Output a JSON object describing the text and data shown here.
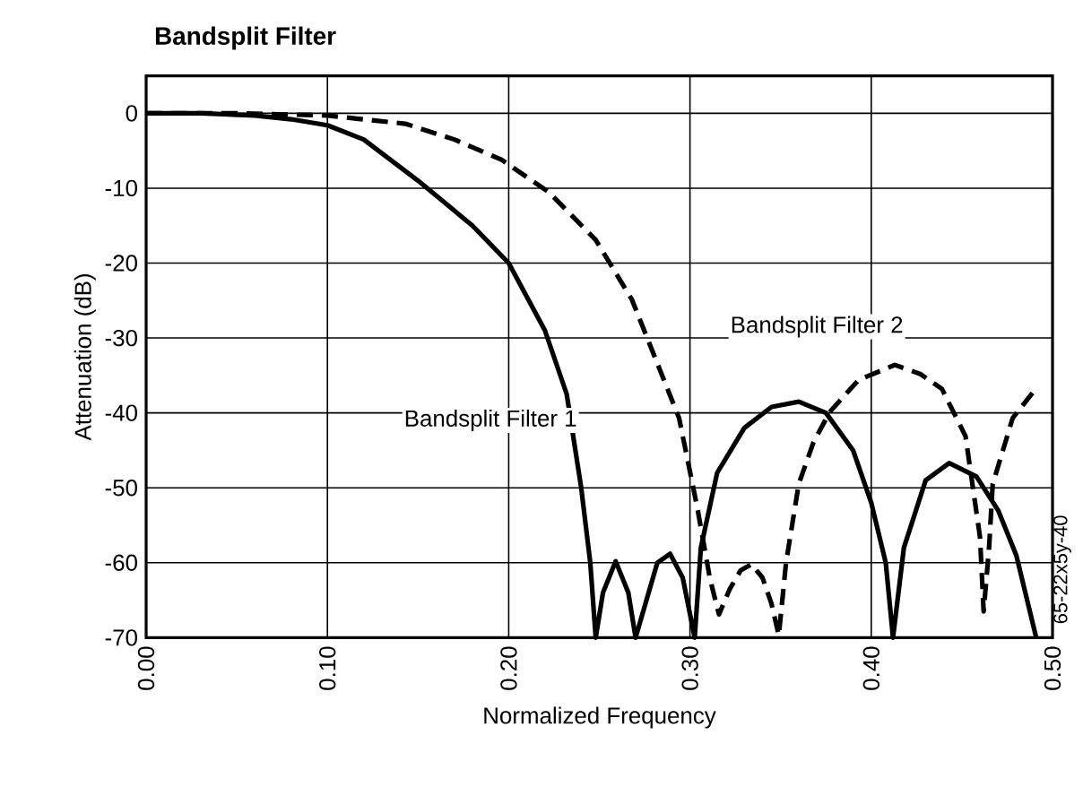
{
  "chart_data": {
    "type": "line",
    "title": "Bandsplit Filter",
    "xlabel": "Normalized Frequency",
    "ylabel": "Attenuation (dB)",
    "annotations": [
      "65-22x5y-40"
    ],
    "xlim": [
      0,
      0.5
    ],
    "ylim": [
      -70,
      5
    ],
    "xticks": [
      {
        "value": 0,
        "label": "0.00"
      },
      {
        "value": 0.1,
        "label": "0.10"
      },
      {
        "value": 0.2,
        "label": "0.20"
      },
      {
        "value": 0.3,
        "label": "0.30"
      },
      {
        "value": 0.4,
        "label": "0.40"
      },
      {
        "value": 0.5,
        "label": "0.50"
      }
    ],
    "yticks": [
      -70,
      -60,
      -50,
      -40,
      -30,
      -20,
      -10,
      0
    ],
    "grid": true,
    "legend": false,
    "marker": "none",
    "series": [
      {
        "name": "Bandsplit Filter 1",
        "color": "#000000",
        "line_style": "solid",
        "x": [
          0,
          0.03,
          0.06,
          0.08,
          0.1,
          0.12,
          0.15,
          0.18,
          0.2,
          0.22,
          0.232,
          0.24,
          0.245,
          0.248,
          0.252,
          0.259,
          0.266,
          0.27,
          0.276,
          0.282,
          0.289,
          0.296,
          0.3026,
          0.306,
          0.315,
          0.33,
          0.345,
          0.36,
          0.375,
          0.39,
          0.4,
          0.408,
          0.412,
          0.418,
          0.43,
          0.443,
          0.458,
          0.47,
          0.48,
          0.491
        ],
        "values": [
          0,
          0,
          -0.3,
          -0.8,
          -1.6,
          -3.5,
          -9,
          -15,
          -20,
          -29,
          -37.5,
          -50,
          -60,
          -70,
          -64,
          -59.8,
          -64,
          -70,
          -65,
          -60,
          -58.8,
          -62,
          -70,
          -58,
          -48,
          -42,
          -39.2,
          -38.5,
          -40,
          -45,
          -52,
          -60,
          -70,
          -58,
          -49,
          -46.7,
          -48.5,
          -53,
          -59,
          -70
        ]
      },
      {
        "name": "Bandsplit Filter 2",
        "color": "#000000",
        "line_style": "dashed",
        "x": [
          0,
          0.05,
          0.1,
          0.143,
          0.17,
          0.196,
          0.222,
          0.248,
          0.268,
          0.281,
          0.294,
          0.304,
          0.311,
          0.316,
          0.322,
          0.328,
          0.334,
          0.34,
          0.345,
          0.349,
          0.353,
          0.36,
          0.368,
          0.377,
          0.393,
          0.413,
          0.427,
          0.439,
          0.452,
          0.46,
          0.462,
          0.465,
          0.467,
          0.478,
          0.492
        ],
        "values": [
          0,
          0,
          -0.3,
          -1.4,
          -3.5,
          -6.2,
          -10.5,
          -16.9,
          -24.9,
          -32.8,
          -40.7,
          -52.6,
          -62.1,
          -66.9,
          -63.5,
          -61,
          -60.2,
          -62,
          -65.5,
          -69.7,
          -60,
          -49.5,
          -44,
          -39.9,
          -35.6,
          -33.6,
          -34.8,
          -36.8,
          -43.1,
          -56.6,
          -66.5,
          -58,
          -49.5,
          -40.7,
          -36.4
        ]
      }
    ]
  }
}
